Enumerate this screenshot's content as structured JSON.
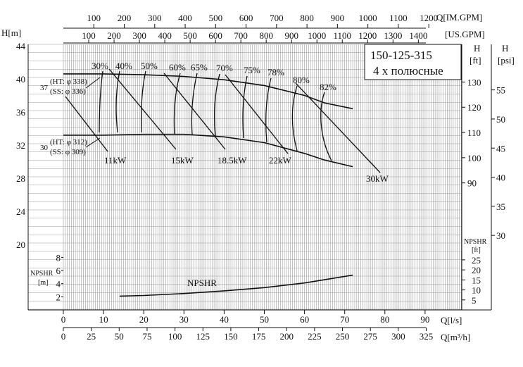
{
  "colors": {
    "ink": "#111111",
    "grid": "#9a9a9a",
    "background": "#ffffff"
  },
  "axis_labels": {
    "h_m": "H[m]",
    "q_imgpm": "Q[IM.GPM]",
    "us_gpm": "[US.GPM]",
    "h_ft_top": "H",
    "h_ft_bottom": "[ft]",
    "h_psi_top": "H",
    "h_psi_bottom": "[psi]",
    "npshr_ft_top": "NPSHR",
    "npshr_ft_bottom": "[ft]",
    "npshr_m_top": "NPSHR",
    "npshr_m_bottom": "[m]",
    "q_ls": "Q[l/s]",
    "q_m3h": "Q[m³/h]"
  },
  "title_box": {
    "model": "150-125-315",
    "poles": "4 х полюсные"
  },
  "diameters": {
    "max_value": "37",
    "max_ht": "(HT: φ 338)",
    "max_ss": "(SS: φ 336)",
    "min_value": "30",
    "min_ht": "(HT: φ 312)",
    "min_ss": "(SS: φ 309)"
  },
  "chart_data": {
    "type": "line",
    "xlabel": "Q[l/s]",
    "ylabel": "H[m]",
    "xlim": [
      0,
      95
    ],
    "ylim": [
      12,
      44
    ],
    "ticks": {
      "q_ls": [
        "0",
        "10",
        "20",
        "30",
        "40",
        "50",
        "60",
        "70",
        "80",
        "90"
      ],
      "q_m3h": [
        "0",
        "25",
        "50",
        "75",
        "100",
        "125",
        "150",
        "175",
        "200",
        "225",
        "250",
        "275",
        "300",
        "325"
      ],
      "im_gpm": [
        "100",
        "200",
        "300",
        "400",
        "500",
        "600",
        "700",
        "800",
        "900",
        "1000",
        "1100",
        "1200"
      ],
      "us_gpm": [
        "100",
        "200",
        "300",
        "400",
        "500",
        "600",
        "700",
        "800",
        "900",
        "1000",
        "1100",
        "1200",
        "1300",
        "1400"
      ],
      "h_m": [
        "20",
        "24",
        "28",
        "32",
        "36",
        "40",
        "44"
      ],
      "h_ft": [
        "90",
        "100",
        "110",
        "120",
        "130"
      ],
      "h_psi": [
        "30",
        "35",
        "40",
        "45",
        "50",
        "55"
      ],
      "npshr_m": [
        "2",
        "4",
        "6",
        "8"
      ],
      "npshr_ft": [
        "5",
        "10",
        "15",
        "20",
        "25"
      ]
    },
    "series": [
      {
        "x": [
          0,
          10,
          20,
          30,
          40,
          50,
          60,
          65,
          72
        ],
        "y": [
          40.6,
          40.6,
          40.5,
          40.3,
          39.9,
          39.2,
          38.0,
          37.1,
          36.4
        ]
      },
      {
        "x": [
          0,
          10,
          20,
          30,
          40,
          50,
          60,
          65,
          72
        ],
        "y": [
          33.2,
          33.2,
          33.3,
          33.3,
          33.0,
          32.3,
          31.0,
          30.2,
          29.4
        ]
      },
      {
        "name": "NPSHR",
        "x": [
          14,
          20,
          30,
          40,
          50,
          60,
          65,
          72
        ],
        "y": [
          2.1,
          2.2,
          2.5,
          2.9,
          3.4,
          4.1,
          4.6,
          5.3
        ]
      }
    ],
    "efficiency_labels": [
      "30%",
      "40%",
      "50%",
      "60%",
      "65%",
      "70%",
      "75%",
      "78%",
      "80%",
      "82%"
    ],
    "power_labels": [
      "11kW",
      "15kW",
      "18.5kW",
      "22kW",
      "30kW"
    ],
    "npshr_label": "NPSHR"
  }
}
